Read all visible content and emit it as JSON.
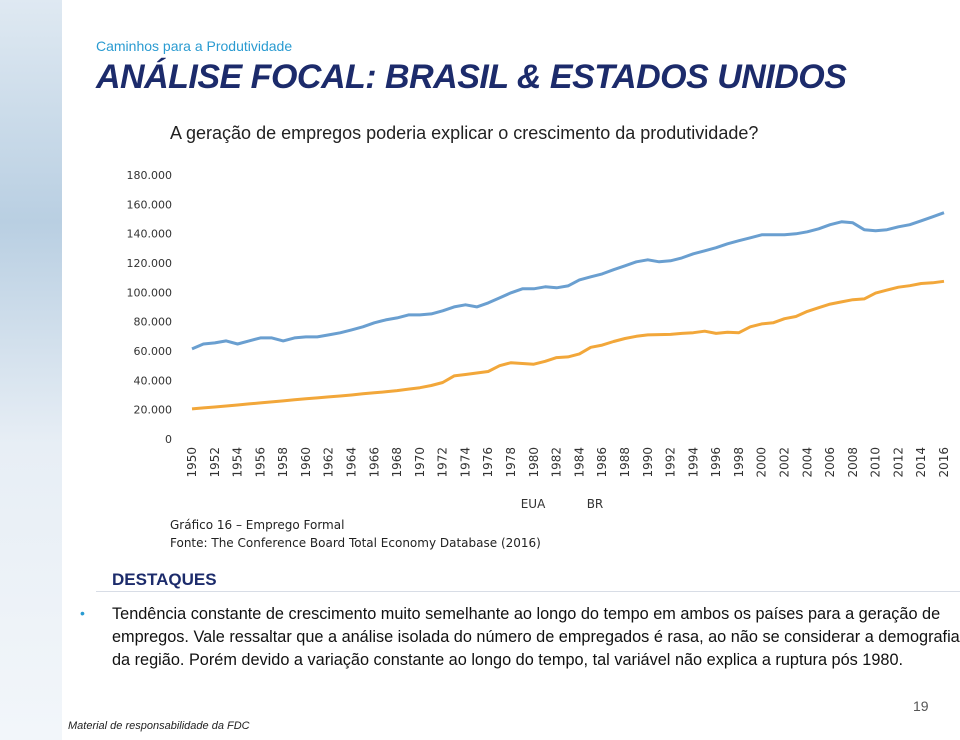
{
  "header": {
    "subtitle": "Caminhos para a Produtividade",
    "title": "ANÁLISE FOCAL: BRASIL & ESTADOS UNIDOS",
    "question": "A geração de empregos poderia explicar o crescimento da produtividade?"
  },
  "chart_data": {
    "type": "line",
    "caption": [
      "Gráfico 16 – Emprego Formal",
      "Fonte: The Conference Board Total Economy Database (2016)"
    ],
    "x": [
      1950,
      1951,
      1952,
      1953,
      1954,
      1955,
      1956,
      1957,
      1958,
      1959,
      1960,
      1961,
      1962,
      1963,
      1964,
      1965,
      1966,
      1967,
      1968,
      1969,
      1970,
      1971,
      1972,
      1973,
      1974,
      1975,
      1976,
      1977,
      1978,
      1979,
      1980,
      1981,
      1982,
      1983,
      1984,
      1985,
      1986,
      1987,
      1988,
      1989,
      1990,
      1991,
      1992,
      1993,
      1994,
      1995,
      1996,
      1997,
      1998,
      1999,
      2000,
      2001,
      2002,
      2003,
      2004,
      2005,
      2006,
      2007,
      2008,
      2009,
      2010,
      2011,
      2012,
      2013,
      2014,
      2015,
      2016
    ],
    "xlim": [
      1950,
      2016
    ],
    "xticks": [
      1950,
      1952,
      1954,
      1956,
      1958,
      1960,
      1962,
      1964,
      1966,
      1968,
      1970,
      1972,
      1974,
      1976,
      1978,
      1980,
      1982,
      1984,
      1986,
      1988,
      1990,
      1992,
      1994,
      1996,
      1998,
      2000,
      2002,
      2004,
      2006,
      2008,
      2010,
      2012,
      2014,
      2016
    ],
    "ylim": [
      0,
      180000
    ],
    "yticks": [
      0,
      {
        "value": 20000,
        "label": "20.000"
      },
      {
        "value": 40000,
        "label": "40.000"
      },
      {
        "value": 60000,
        "label": "60.000"
      },
      {
        "value": 80000,
        "label": "80.000"
      },
      {
        "value": 100000,
        "label": "100.000"
      },
      {
        "value": 120000,
        "label": "120.000"
      },
      {
        "value": 140000,
        "label": "140.000"
      },
      {
        "value": 160000,
        "label": "160.000"
      },
      {
        "value": 180000,
        "label": "180.000"
      }
    ],
    "series": [
      {
        "name": "EUA",
        "color": "#6a9fd0",
        "values": [
          61400,
          64800,
          65500,
          66900,
          64800,
          66900,
          68900,
          68900,
          66900,
          68900,
          69600,
          69600,
          71000,
          72400,
          74400,
          76500,
          79200,
          81200,
          82600,
          84600,
          84600,
          85300,
          87400,
          90100,
          91500,
          90100,
          92800,
          96200,
          99700,
          102400,
          102400,
          103800,
          103100,
          104400,
          108500,
          110600,
          112600,
          115400,
          118100,
          120800,
          122200,
          120800,
          121500,
          123500,
          126300,
          128300,
          130400,
          133100,
          135200,
          137200,
          139200,
          139200,
          139200,
          139900,
          141300,
          143300,
          146100,
          148100,
          147400,
          142700,
          142000,
          142700,
          144700,
          146100,
          148800,
          151500,
          154300
        ]
      },
      {
        "name": "BR",
        "color": "#f2a73a",
        "values": [
          20500,
          21200,
          21800,
          22500,
          23200,
          23900,
          24600,
          25300,
          26000,
          26700,
          27400,
          28000,
          28700,
          29300,
          30000,
          30800,
          31500,
          32200,
          33000,
          34000,
          35000,
          36500,
          38500,
          43000,
          44000,
          45000,
          46000,
          50000,
          52000,
          51500,
          51000,
          53000,
          55500,
          56000,
          58000,
          62500,
          64000,
          66500,
          68500,
          70000,
          71000,
          71200,
          71300,
          72000,
          72500,
          73500,
          72000,
          72800,
          72500,
          76500,
          78500,
          79200,
          82000,
          83500,
          87000,
          89500,
          92000,
          93500,
          95000,
          95500,
          99500,
          101500,
          103500,
          104500,
          106000,
          106500,
          107500
        ]
      }
    ]
  },
  "highlights": {
    "heading": "DESTAQUES",
    "text": "Tendência constante de crescimento muito semelhante ao longo do tempo em ambos os países para a geração de empregos. Vale ressaltar que a análise isolada do número de empregados é rasa, ao não se considerar a demografia da região. Porém devido a variação constante ao longo do tempo, tal variável não explica a ruptura pós 1980."
  },
  "footer": {
    "note": "Material de responsabilidade da FDC",
    "page": "19"
  }
}
